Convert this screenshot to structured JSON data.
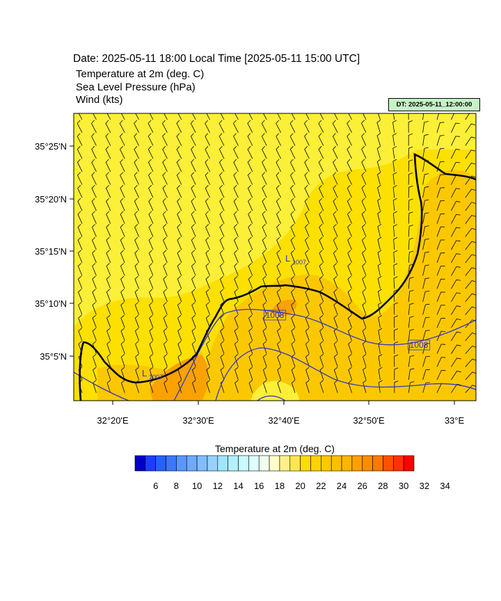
{
  "header": {
    "title": "Date: 2025-05-11  18:00 Local Time [2025-05-11  15:00 UTC]",
    "line1": "Temperature at 2m   (deg. C)",
    "line2": "Sea Level Pressure   (hPa)",
    "line3": "Wind   (kts)",
    "dt_label": "DT: 2025-05-11_12:00:00"
  },
  "map": {
    "lat_labels": [
      "35°25'N",
      "35°20'N",
      "35°15'N",
      "35°10'N",
      "35°5'N"
    ],
    "lon_labels": [
      "32°20'E",
      "32°30'E",
      "32°40'E",
      "32°50'E",
      "33°E"
    ],
    "isobar_labels": [
      "1008",
      "1008"
    ],
    "low_marker": "L",
    "low_labels": [
      "1007",
      "1007"
    ],
    "colors": {
      "base_fill": "#fcef37",
      "band_24_26": "#fce000",
      "band_26_28": "#fbc800",
      "band_28_30": "#f9a200",
      "band_30_32": "#f57a00",
      "coastline": "#000000",
      "isobar": "#3434c8",
      "wind_barb": "#000000"
    }
  },
  "colorbar": {
    "title": "Temperature at 2m  (deg. C)",
    "tick_labels": [
      "6",
      "8",
      "10",
      "12",
      "14",
      "16",
      "18",
      "20",
      "22",
      "24",
      "26",
      "28",
      "30",
      "32",
      "34"
    ],
    "colors": [
      "#0000c8",
      "#1e3cff",
      "#2860ff",
      "#3c78ff",
      "#5a96ff",
      "#6eaaff",
      "#82beff",
      "#96d2ff",
      "#a0e6ff",
      "#b4f0ff",
      "#c8faff",
      "#dcffff",
      "#f0fff0",
      "#ffffc8",
      "#fff08c",
      "#ffe650",
      "#ffdc00",
      "#ffd200",
      "#ffc800",
      "#ffbe00",
      "#ffb400",
      "#ffa000",
      "#ff8c00",
      "#ff7800",
      "#ff5000",
      "#ff3200",
      "#ff0000"
    ]
  }
}
